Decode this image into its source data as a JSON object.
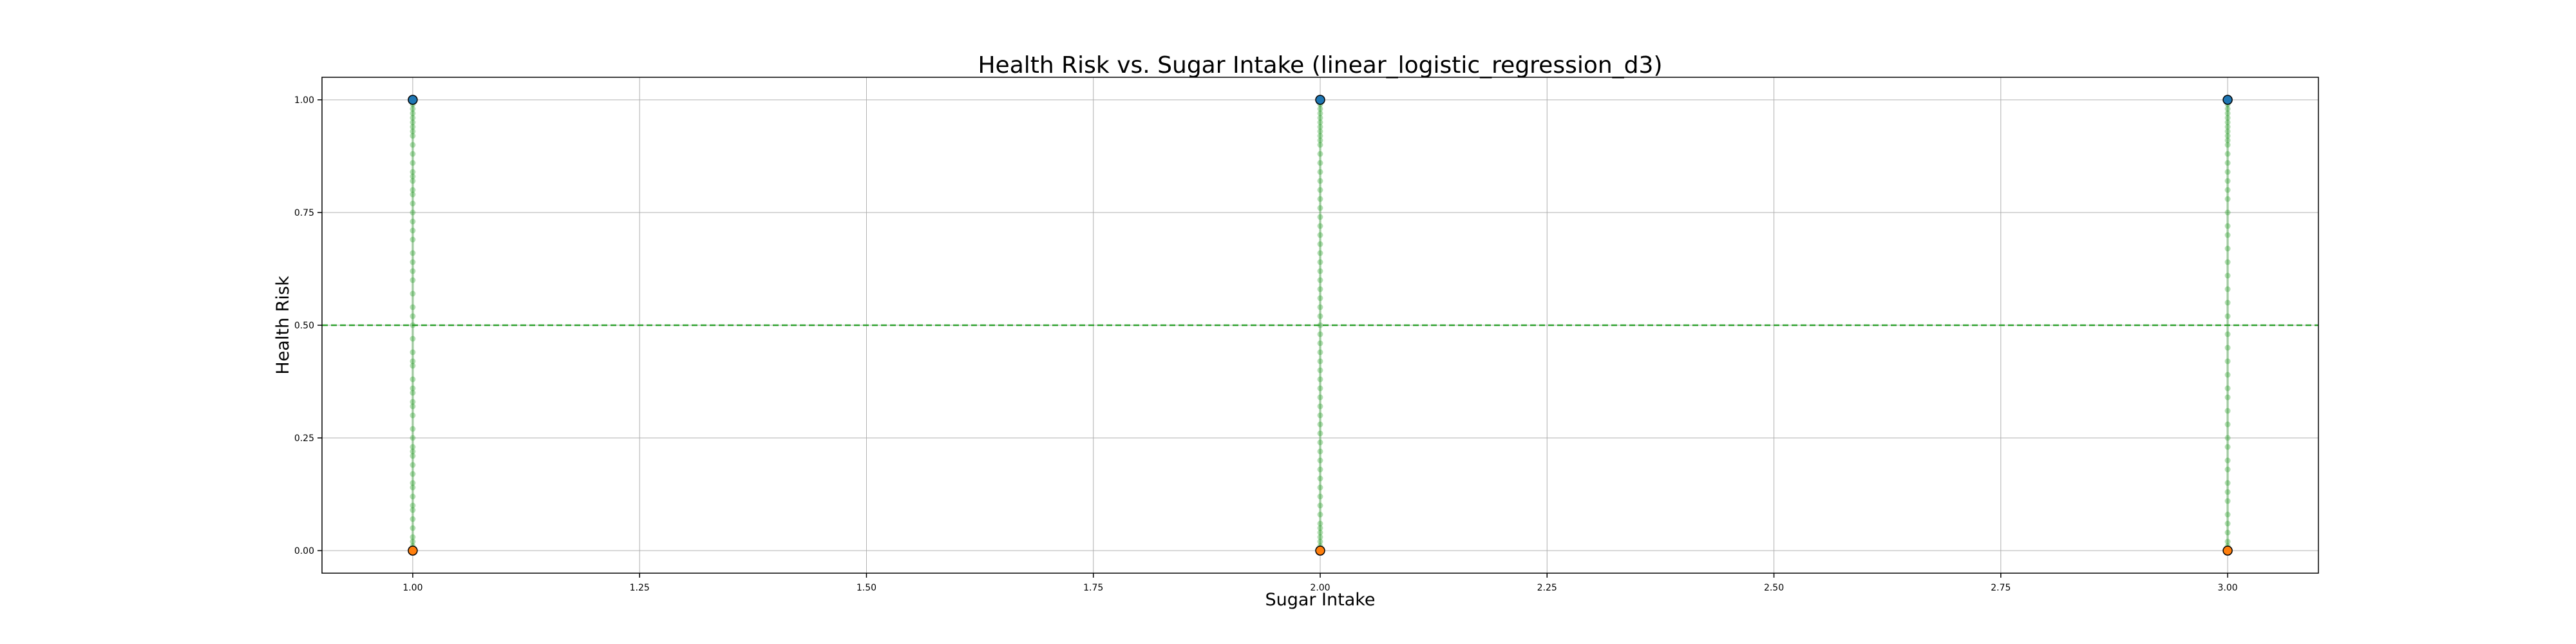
{
  "chart_data": {
    "type": "scatter",
    "title": "Health Risk vs. Sugar Intake (linear_logistic_regression_d3)",
    "xlabel": "Sugar Intake",
    "ylabel": "Health Risk",
    "xlim": [
      0.9,
      3.1
    ],
    "ylim": [
      -0.05,
      1.05
    ],
    "xticks": [
      "1.00",
      "1.25",
      "1.50",
      "1.75",
      "2.00",
      "2.25",
      "2.50",
      "2.75",
      "3.00"
    ],
    "yticks": [
      "0.00",
      "0.25",
      "0.50",
      "0.75",
      "1.00"
    ],
    "grid": true,
    "legend": "none",
    "threshold": {
      "y": 0.5,
      "color": "#2ca02c",
      "style": "dashed"
    },
    "observed_points": [
      {
        "x": 1,
        "y": 1,
        "color": "#1f77b4"
      },
      {
        "x": 1,
        "y": 0,
        "color": "#ff7f0e"
      },
      {
        "x": 2,
        "y": 1,
        "color": "#1f77b4"
      },
      {
        "x": 2,
        "y": 0,
        "color": "#ff7f0e"
      },
      {
        "x": 3,
        "y": 1,
        "color": "#1f77b4"
      },
      {
        "x": 3,
        "y": 0,
        "color": "#ff7f0e"
      }
    ],
    "predicted_probabilities": {
      "color": "#2ca02c",
      "series": [
        {
          "x": 1,
          "values": [
            0.0,
            0.01,
            0.02,
            0.03,
            0.05,
            0.07,
            0.09,
            0.1,
            0.12,
            0.14,
            0.15,
            0.17,
            0.19,
            0.21,
            0.22,
            0.23,
            0.25,
            0.27,
            0.3,
            0.32,
            0.33,
            0.35,
            0.36,
            0.38,
            0.41,
            0.42,
            0.44,
            0.47,
            0.5,
            0.52,
            0.54,
            0.57,
            0.6,
            0.62,
            0.64,
            0.66,
            0.69,
            0.71,
            0.73,
            0.75,
            0.77,
            0.79,
            0.8,
            0.82,
            0.83,
            0.84,
            0.86,
            0.88,
            0.9,
            0.92,
            0.93,
            0.94,
            0.95,
            0.96,
            0.97,
            0.98,
            0.99,
            1.0
          ]
        },
        {
          "x": 2,
          "values": [
            0.0,
            0.01,
            0.02,
            0.03,
            0.04,
            0.05,
            0.06,
            0.08,
            0.1,
            0.12,
            0.14,
            0.16,
            0.18,
            0.2,
            0.22,
            0.24,
            0.26,
            0.28,
            0.3,
            0.32,
            0.34,
            0.36,
            0.38,
            0.4,
            0.42,
            0.44,
            0.46,
            0.48,
            0.5,
            0.52,
            0.54,
            0.56,
            0.58,
            0.6,
            0.62,
            0.64,
            0.66,
            0.68,
            0.7,
            0.72,
            0.74,
            0.76,
            0.78,
            0.8,
            0.82,
            0.84,
            0.86,
            0.88,
            0.9,
            0.91,
            0.92,
            0.93,
            0.94,
            0.95,
            0.96,
            0.97,
            0.98,
            0.99,
            1.0
          ]
        },
        {
          "x": 3,
          "values": [
            0.0,
            0.01,
            0.02,
            0.04,
            0.06,
            0.08,
            0.11,
            0.13,
            0.15,
            0.18,
            0.2,
            0.23,
            0.25,
            0.28,
            0.31,
            0.34,
            0.36,
            0.39,
            0.42,
            0.45,
            0.48,
            0.52,
            0.55,
            0.58,
            0.61,
            0.64,
            0.67,
            0.7,
            0.72,
            0.75,
            0.78,
            0.8,
            0.82,
            0.84,
            0.86,
            0.88,
            0.9,
            0.91,
            0.92,
            0.93,
            0.94,
            0.95,
            0.96,
            0.97,
            0.98,
            0.99,
            1.0
          ]
        }
      ]
    }
  }
}
